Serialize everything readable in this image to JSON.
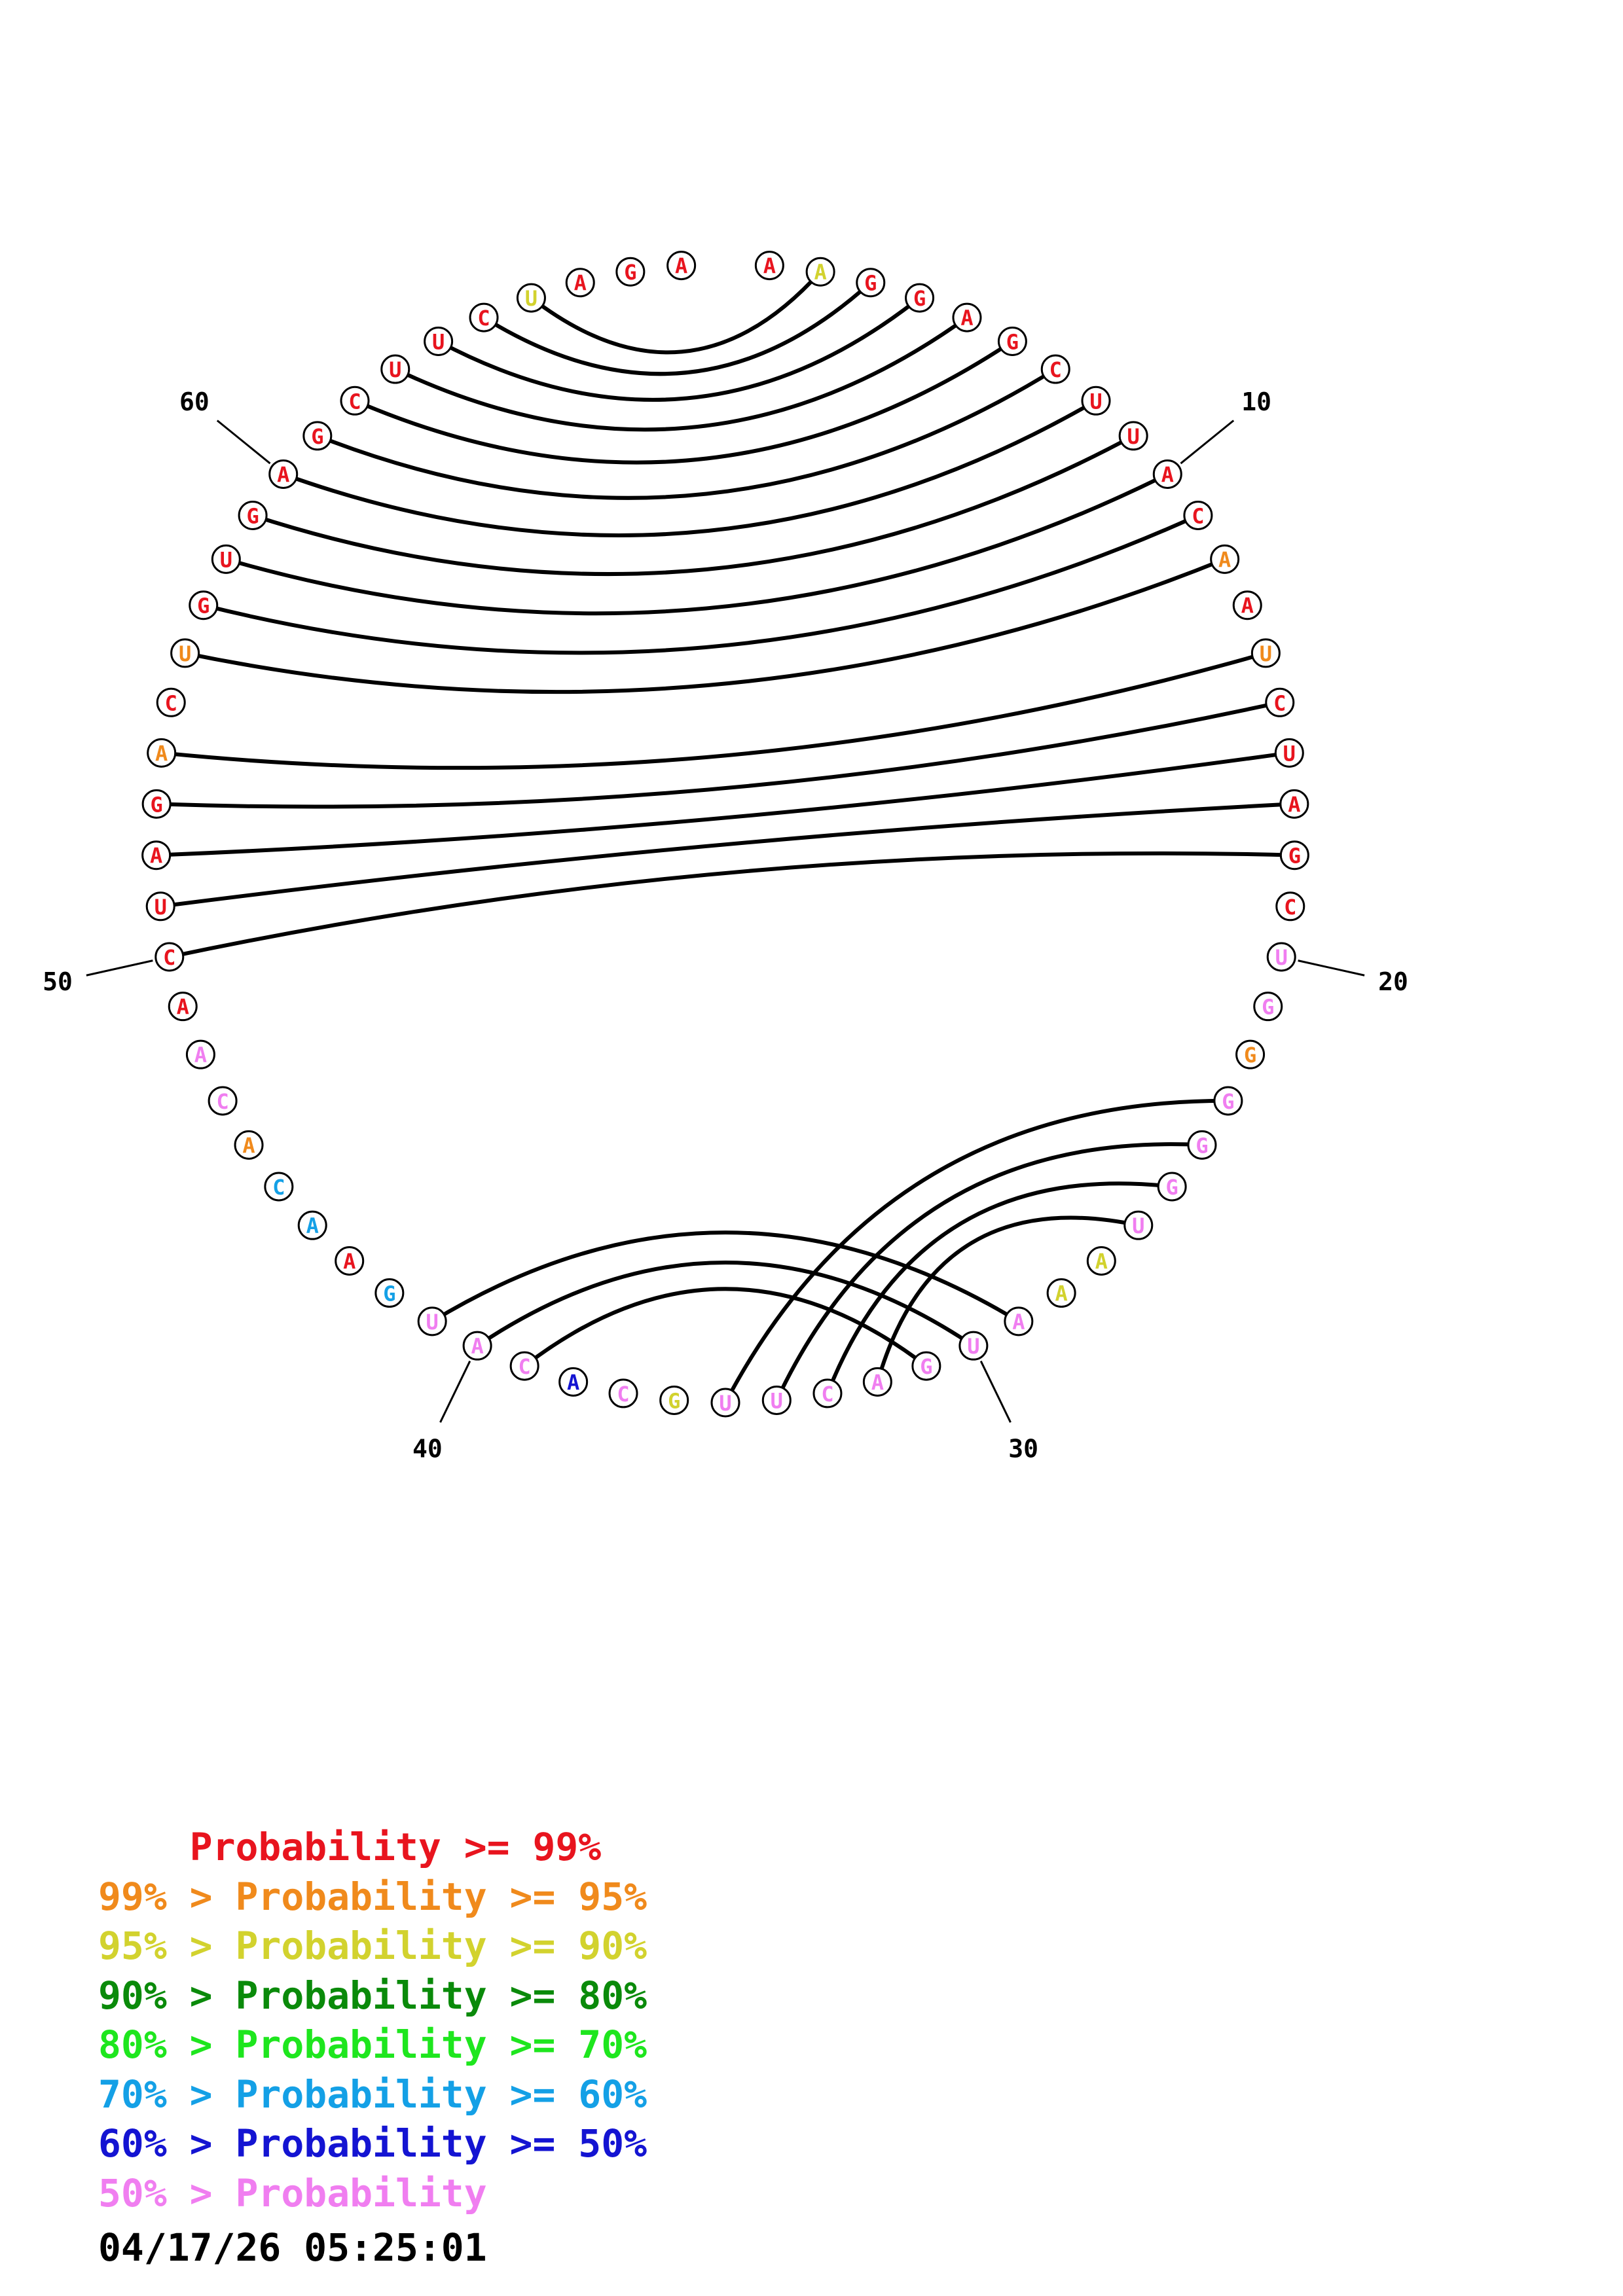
{
  "colors": {
    "p99": "#e8141e",
    "p95": "#f08a1c",
    "p90": "#d2d22e",
    "p80": "#0a8a0a",
    "p70": "#1ee61e",
    "p60": "#14a0e6",
    "p50": "#1414d2",
    "plow": "#f07ef0"
  },
  "sequence": [
    {
      "n": 1,
      "b": "A",
      "c": "p99"
    },
    {
      "n": 2,
      "b": "A",
      "c": "p90"
    },
    {
      "n": 3,
      "b": "G",
      "c": "p99"
    },
    {
      "n": 4,
      "b": "G",
      "c": "p99"
    },
    {
      "n": 5,
      "b": "A",
      "c": "p99"
    },
    {
      "n": 6,
      "b": "G",
      "c": "p99"
    },
    {
      "n": 7,
      "b": "C",
      "c": "p99"
    },
    {
      "n": 8,
      "b": "U",
      "c": "p99"
    },
    {
      "n": 9,
      "b": "U",
      "c": "p99"
    },
    {
      "n": 10,
      "b": "A",
      "c": "p99"
    },
    {
      "n": 11,
      "b": "C",
      "c": "p99"
    },
    {
      "n": 12,
      "b": "A",
      "c": "p95"
    },
    {
      "n": 13,
      "b": "A",
      "c": "p99"
    },
    {
      "n": 14,
      "b": "U",
      "c": "p95"
    },
    {
      "n": 15,
      "b": "C",
      "c": "p99"
    },
    {
      "n": 16,
      "b": "U",
      "c": "p99"
    },
    {
      "n": 17,
      "b": "A",
      "c": "p99"
    },
    {
      "n": 18,
      "b": "G",
      "c": "p99"
    },
    {
      "n": 19,
      "b": "C",
      "c": "p99"
    },
    {
      "n": 20,
      "b": "U",
      "c": "plow"
    },
    {
      "n": 21,
      "b": "G",
      "c": "plow"
    },
    {
      "n": 22,
      "b": "G",
      "c": "p95"
    },
    {
      "n": 23,
      "b": "G",
      "c": "plow"
    },
    {
      "n": 24,
      "b": "G",
      "c": "plow"
    },
    {
      "n": 25,
      "b": "G",
      "c": "plow"
    },
    {
      "n": 26,
      "b": "U",
      "c": "plow"
    },
    {
      "n": 27,
      "b": "A",
      "c": "p90"
    },
    {
      "n": 28,
      "b": "A",
      "c": "p90"
    },
    {
      "n": 29,
      "b": "A",
      "c": "plow"
    },
    {
      "n": 30,
      "b": "U",
      "c": "plow"
    },
    {
      "n": 31,
      "b": "G",
      "c": "plow"
    },
    {
      "n": 32,
      "b": "A",
      "c": "plow"
    },
    {
      "n": 33,
      "b": "C",
      "c": "plow"
    },
    {
      "n": 34,
      "b": "U",
      "c": "plow"
    },
    {
      "n": 35,
      "b": "U",
      "c": "plow"
    },
    {
      "n": 36,
      "b": "G",
      "c": "p90"
    },
    {
      "n": 37,
      "b": "C",
      "c": "plow"
    },
    {
      "n": 38,
      "b": "A",
      "c": "p50"
    },
    {
      "n": 39,
      "b": "C",
      "c": "plow"
    },
    {
      "n": 40,
      "b": "A",
      "c": "plow"
    },
    {
      "n": 41,
      "b": "U",
      "c": "plow"
    },
    {
      "n": 42,
      "b": "G",
      "c": "p60"
    },
    {
      "n": 43,
      "b": "A",
      "c": "p99"
    },
    {
      "n": 44,
      "b": "A",
      "c": "p60"
    },
    {
      "n": 45,
      "b": "C",
      "c": "p60"
    },
    {
      "n": 46,
      "b": "A",
      "c": "p95"
    },
    {
      "n": 47,
      "b": "C",
      "c": "plow"
    },
    {
      "n": 48,
      "b": "A",
      "c": "plow"
    },
    {
      "n": 49,
      "b": "A",
      "c": "p99"
    },
    {
      "n": 50,
      "b": "C",
      "c": "p99"
    },
    {
      "n": 51,
      "b": "U",
      "c": "p99"
    },
    {
      "n": 52,
      "b": "A",
      "c": "p99"
    },
    {
      "n": 53,
      "b": "G",
      "c": "p99"
    },
    {
      "n": 54,
      "b": "A",
      "c": "p95"
    },
    {
      "n": 55,
      "b": "C",
      "c": "p99"
    },
    {
      "n": 56,
      "b": "U",
      "c": "p95"
    },
    {
      "n": 57,
      "b": "G",
      "c": "p99"
    },
    {
      "n": 58,
      "b": "U",
      "c": "p99"
    },
    {
      "n": 59,
      "b": "G",
      "c": "p99"
    },
    {
      "n": 60,
      "b": "A",
      "c": "p99"
    },
    {
      "n": 61,
      "b": "G",
      "c": "p99"
    },
    {
      "n": 62,
      "b": "C",
      "c": "p99"
    },
    {
      "n": 63,
      "b": "U",
      "c": "p99"
    },
    {
      "n": 64,
      "b": "U",
      "c": "p99"
    },
    {
      "n": 65,
      "b": "C",
      "c": "p99"
    },
    {
      "n": 66,
      "b": "U",
      "c": "p90"
    },
    {
      "n": 67,
      "b": "A",
      "c": "p99"
    },
    {
      "n": 68,
      "b": "G",
      "c": "p99"
    },
    {
      "n": 69,
      "b": "A",
      "c": "p99"
    }
  ],
  "pairs": [
    [
      2,
      66
    ],
    [
      3,
      65
    ],
    [
      4,
      64
    ],
    [
      5,
      63
    ],
    [
      6,
      62
    ],
    [
      7,
      61
    ],
    [
      8,
      60
    ],
    [
      9,
      59
    ],
    [
      10,
      58
    ],
    [
      11,
      57
    ],
    [
      12,
      56
    ],
    [
      14,
      54
    ],
    [
      15,
      53
    ],
    [
      16,
      52
    ],
    [
      17,
      51
    ],
    [
      18,
      50
    ],
    [
      23,
      35
    ],
    [
      24,
      34
    ],
    [
      25,
      33
    ],
    [
      26,
      32
    ],
    [
      29,
      41
    ],
    [
      30,
      40
    ],
    [
      31,
      39
    ]
  ],
  "numbers": [
    {
      "label": "10",
      "n": 10
    },
    {
      "label": "20",
      "n": 20
    },
    {
      "label": "30",
      "n": 30
    },
    {
      "label": "40",
      "n": 40
    },
    {
      "label": "50",
      "n": 50
    },
    {
      "label": "60",
      "n": 60
    }
  ],
  "legend": [
    {
      "prefix": "    ",
      "text": "Probability >= 99%",
      "color": "p99"
    },
    {
      "prefix": "99% > ",
      "text": "Probability >= 95%",
      "color": "p95"
    },
    {
      "prefix": "95% > ",
      "text": "Probability >= 90%",
      "color": "p90"
    },
    {
      "prefix": "90% > ",
      "text": "Probability >= 80%",
      "color": "p80"
    },
    {
      "prefix": "80% > ",
      "text": "Probability >= 70%",
      "color": "p70"
    },
    {
      "prefix": "70% > ",
      "text": "Probability >= 60%",
      "color": "p60"
    },
    {
      "prefix": "60% > ",
      "text": "Probability >= 50%",
      "color": "p50"
    },
    {
      "prefix": "50% > ",
      "text": "Probability",
      "color": "plow"
    }
  ],
  "timestamp": "04/17/26 05:25:01"
}
